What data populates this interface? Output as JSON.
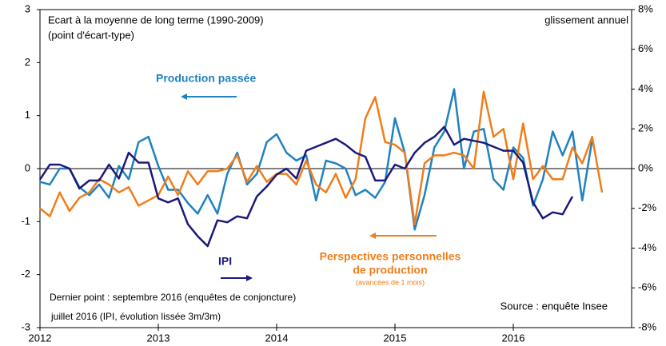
{
  "chart_data": {
    "type": "line",
    "annotations": [
      "Ecart à la moyenne de long terme (1990-2009)",
      "(point d'écart-type)",
      "glissement annuel",
      "Production passée",
      "IPI",
      "Perspectives personnelles",
      "de production",
      "(avancées de 1 mois)",
      "Dernier point : septembre 2016 (enquêtes de conjoncture)",
      "juillet 2016 (IPI, évolution lissée 3m/3m)",
      "Source : enquête Insee"
    ],
    "x": [
      2012,
      2012.0833,
      2012.1667,
      2012.25,
      2012.3333,
      2012.4167,
      2012.5,
      2012.5833,
      2012.6667,
      2012.75,
      2012.8333,
      2012.9167,
      2013,
      2013.0833,
      2013.1667,
      2013.25,
      2013.3333,
      2013.4167,
      2013.5,
      2013.5833,
      2013.6667,
      2013.75,
      2013.8333,
      2013.9167,
      2014,
      2014.0833,
      2014.1667,
      2014.25,
      2014.3333,
      2014.4167,
      2014.5,
      2014.5833,
      2014.6667,
      2014.75,
      2014.8333,
      2014.9167,
      2015,
      2015.0833,
      2015.1667,
      2015.25,
      2015.3333,
      2015.4167,
      2015.5,
      2015.5833,
      2015.6667,
      2015.75,
      2015.8333,
      2015.9167,
      2016,
      2016.0833,
      2016.1667,
      2016.25,
      2016.3333,
      2016.4167,
      2016.5,
      2016.5833,
      2016.6667,
      2016.75
    ],
    "xlim": [
      2012,
      2017
    ],
    "xticks": [
      2012,
      2013,
      2014,
      2015,
      2016
    ],
    "ylim": [
      -3,
      3
    ],
    "yticks": [
      3,
      2,
      1,
      0,
      -1,
      -2,
      -3
    ],
    "y2lim": [
      -8,
      8
    ],
    "y2ticks": [
      {
        "value": 8,
        "label": "8%"
      },
      {
        "value": 6,
        "label": "6%"
      },
      {
        "value": 4,
        "label": "4%"
      },
      {
        "value": 2,
        "label": "2%"
      },
      {
        "value": 0,
        "label": "0%"
      },
      {
        "value": -2,
        "label": "-2%"
      },
      {
        "value": -4,
        "label": "-4%"
      },
      {
        "value": -6,
        "label": "-6%"
      },
      {
        "value": -8,
        "label": "-8%"
      }
    ],
    "series": [
      {
        "name": "Production passée",
        "color": "#1f82c0",
        "values": [
          -0.25,
          -0.3,
          0,
          0,
          -0.35,
          -0.5,
          -0.3,
          -0.55,
          0.05,
          -0.2,
          0.5,
          0.6,
          0.05,
          -0.4,
          -0.4,
          -0.65,
          -0.85,
          -0.5,
          -0.85,
          -0.1,
          0.3,
          -0.3,
          -0.1,
          0.5,
          0.65,
          0.3,
          0.15,
          0.25,
          -0.6,
          0.15,
          0.1,
          0,
          -0.5,
          -0.4,
          -0.55,
          -0.25,
          0.95,
          0.3,
          -1.15,
          -0.5,
          0.4,
          0.7,
          1.5,
          0,
          0.7,
          0.75,
          -0.2,
          -0.4,
          0.4,
          0.2,
          -0.7,
          -0.2,
          0.7,
          0.25,
          0.7,
          -0.6,
          0.55,
          null
        ]
      },
      {
        "name": "Perspectives personnelles",
        "color": "#f07d1a",
        "values": [
          -0.75,
          -0.9,
          -0.45,
          -0.8,
          -0.55,
          -0.45,
          -0.2,
          -0.3,
          -0.45,
          -0.35,
          -0.7,
          -0.6,
          -0.5,
          -0.15,
          -0.5,
          -0.05,
          -0.3,
          -0.05,
          -0.05,
          0,
          0.25,
          -0.25,
          0.05,
          -0.25,
          -0.1,
          -0.1,
          -0.3,
          0.15,
          -0.3,
          -0.45,
          -0.1,
          -0.55,
          -0.2,
          0.95,
          1.35,
          0.5,
          0.45,
          0.3,
          -1.05,
          0.1,
          0.25,
          0.25,
          0.3,
          0.25,
          0,
          1.45,
          0.6,
          0.75,
          -0.2,
          0.85,
          -0.2,
          0.05,
          -0.2,
          -0.2,
          0.4,
          0.1,
          0.6,
          -0.45
        ]
      },
      {
        "name": "IPI",
        "color": "#1b1a7a",
        "axis": "y2",
        "values": [
          -0.55,
          0.2,
          0.2,
          0,
          -1,
          -0.6,
          -0.6,
          0.2,
          -0.5,
          0.8,
          0.3,
          0.3,
          -1.5,
          -1.7,
          -1.5,
          -2.8,
          -3.4,
          -3.9,
          -2.6,
          -2.7,
          -2.4,
          -2.5,
          -1.4,
          -0.9,
          -0.3,
          0,
          -0.5,
          0.9,
          1.1,
          1.3,
          1.5,
          1.2,
          0.8,
          0.6,
          -0.6,
          -0.6,
          0.2,
          0,
          0.8,
          1.3,
          1.6,
          2.1,
          1.2,
          1.5,
          1.4,
          1.3,
          1.1,
          0.9,
          0.9,
          0.3,
          -1.7,
          -2.5,
          -2.2,
          -2.3,
          -1.4,
          null,
          null,
          null
        ]
      }
    ]
  }
}
